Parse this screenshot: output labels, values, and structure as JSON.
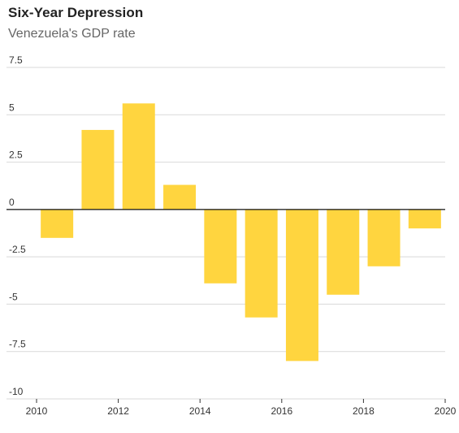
{
  "title": "Six-Year Depression",
  "subtitle": "Venezuela's GDP rate",
  "chart_data": {
    "type": "bar",
    "title": "Six-Year Depression",
    "subtitle": "Venezuela's GDP rate",
    "xlabel": "",
    "ylabel": "",
    "x": [
      2010,
      2011,
      2012,
      2013,
      2014,
      2015,
      2016,
      2017,
      2018,
      2019
    ],
    "values": [
      -1.5,
      4.2,
      5.6,
      1.3,
      -3.9,
      -5.7,
      -8.0,
      -4.5,
      -3.0,
      -1.0
    ],
    "xlim": [
      2010,
      2020
    ],
    "ylim": [
      -10,
      7.5
    ],
    "x_ticks": [
      2010,
      2012,
      2014,
      2016,
      2018,
      2020
    ],
    "x_tick_labels": [
      "2010",
      "2012",
      "2014",
      "2016",
      "2018",
      "2020"
    ],
    "y_ticks": [
      7.5,
      5,
      2.5,
      0,
      -2.5,
      -5,
      -7.5,
      -10
    ],
    "y_tick_labels": [
      "7.5",
      "5",
      "2.5",
      "0",
      "-2.5",
      "-5",
      "-7.5",
      "-10"
    ],
    "grid": true,
    "bar_color": "#FFD53F",
    "grid_color": "#d9d9d9",
    "zero_line_color": "#111111"
  }
}
